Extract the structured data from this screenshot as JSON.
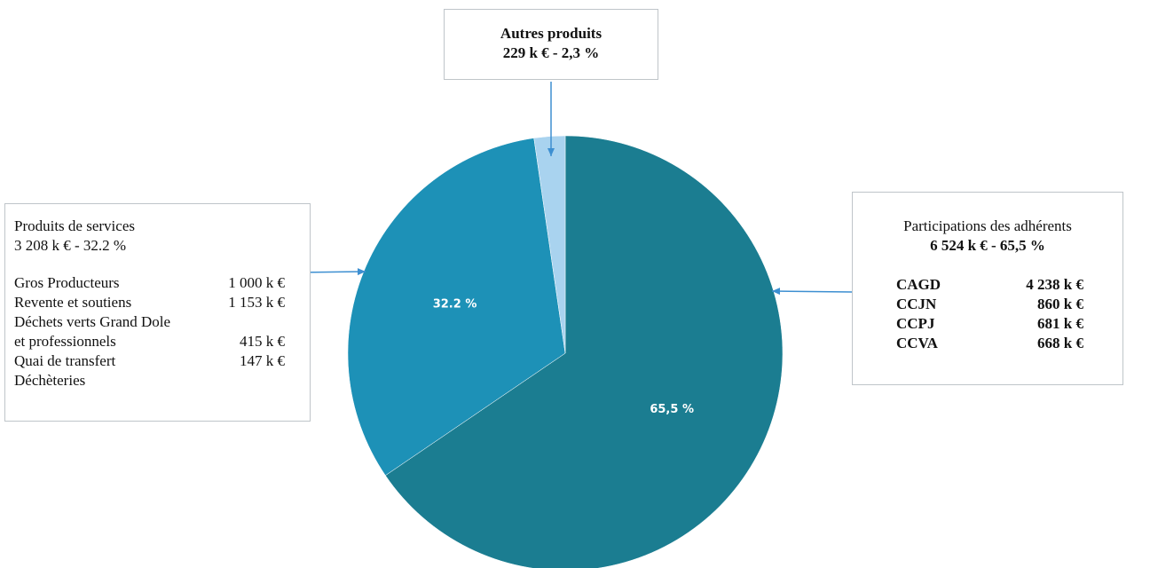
{
  "chart_data": {
    "type": "pie",
    "slices": [
      {
        "label": "Participations des adhérents",
        "value": 65.5,
        "data_label": "65,5 %",
        "color": "#1b7d91"
      },
      {
        "label": "Produits de services",
        "value": 32.2,
        "data_label": "32.2 %",
        "color": "#1d91b7"
      },
      {
        "label": "Autres produits",
        "value": 2.3,
        "data_label": "",
        "color": "#a9d3ef"
      }
    ]
  },
  "callouts": {
    "autres": {
      "title": "Autres produits",
      "subtitle": "229 k € - 2,3 %"
    },
    "services": {
      "title": "Produits de services",
      "subtitle": "3 208 k € - 32.2 %",
      "rows": [
        {
          "label": "Gros Producteurs",
          "amount": "1 000 k €"
        },
        {
          "label": "Revente et soutiens",
          "amount": "1 153 k €"
        },
        {
          "label": "Déchets verts Grand Dole",
          "amount": ""
        },
        {
          "label": "et professionnels",
          "amount": "415 k €"
        },
        {
          "label": "Quai de transfert",
          "amount": "147 k €"
        },
        {
          "label": "Déchèteries",
          "amount": ""
        }
      ]
    },
    "participations": {
      "title": "Participations des adhérents",
      "subtitle": "6 524  k € - 65,5 %",
      "rows": [
        {
          "label": "CAGD",
          "amount": "4 238 k €"
        },
        {
          "label": "CCJN",
          "amount": "860 k €"
        },
        {
          "label": "CCPJ",
          "amount": "681 k €"
        },
        {
          "label": "CCVA",
          "amount": "668 k €"
        }
      ]
    }
  },
  "colors": {
    "arrow": "#3d8fd1",
    "data_label": "#ffffff"
  }
}
